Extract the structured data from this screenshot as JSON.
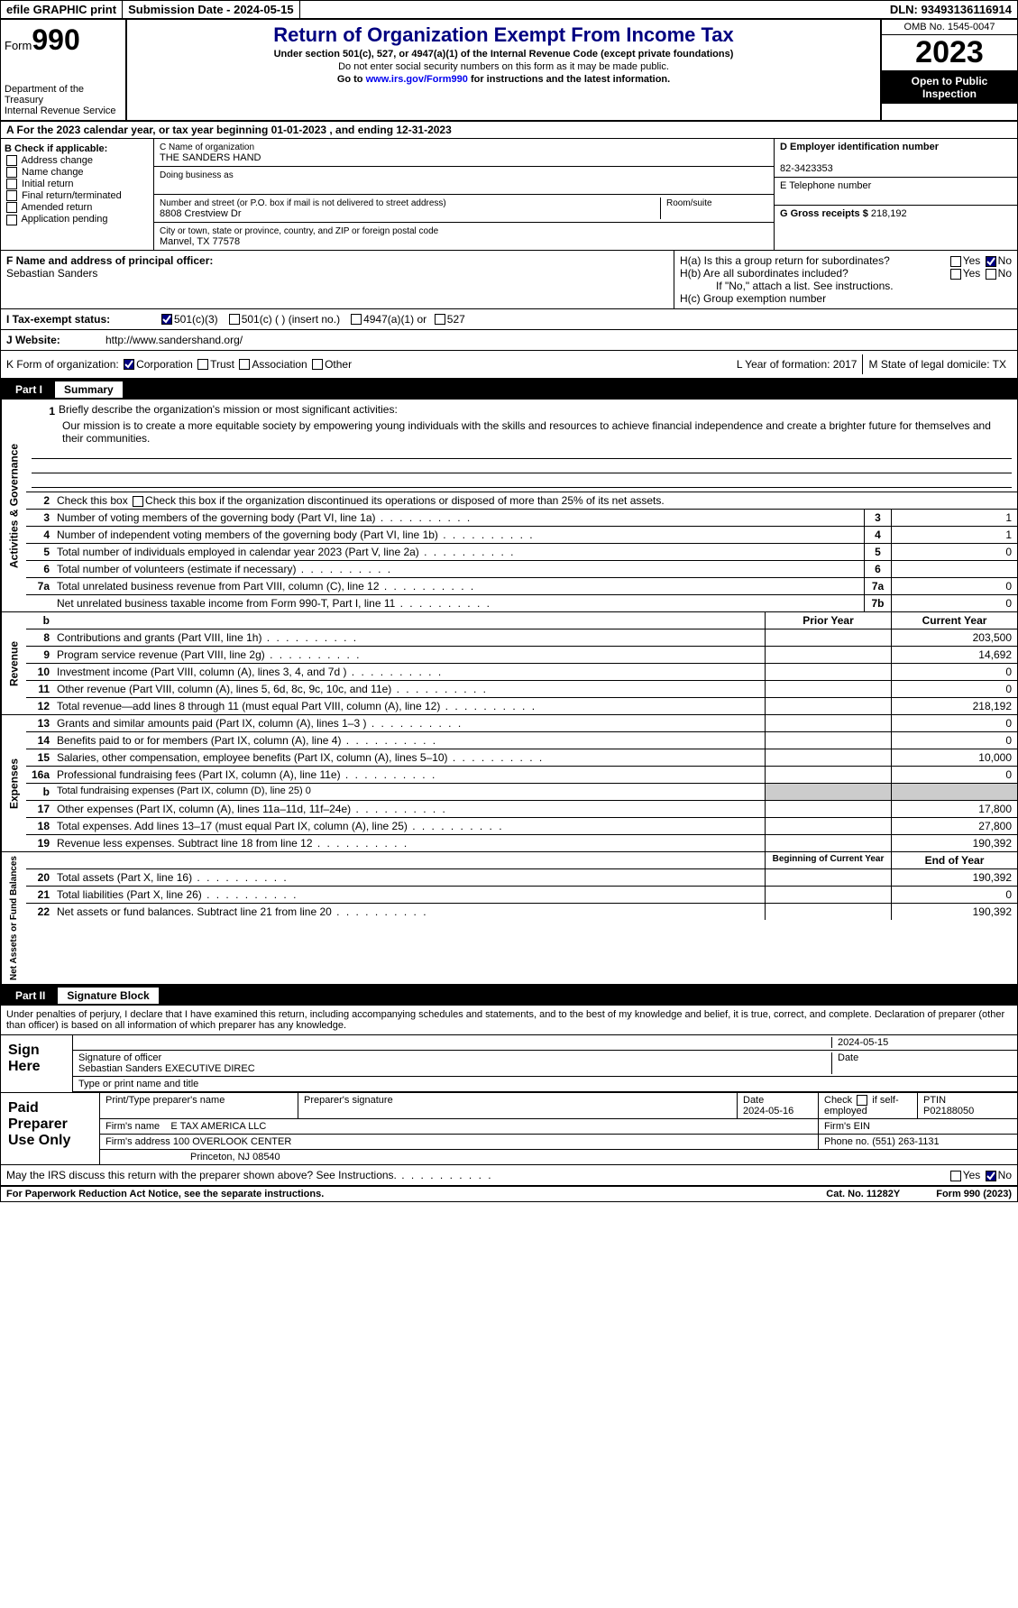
{
  "topbar": {
    "efile": "efile GRAPHIC print",
    "submission": "Submission Date - 2024-05-15",
    "dln": "DLN: 93493136116914"
  },
  "header": {
    "form_label": "Form",
    "form_no": "990",
    "dept": "Department of the Treasury\nInternal Revenue Service",
    "title": "Return of Organization Exempt From Income Tax",
    "subtitle": "Under section 501(c), 527, or 4947(a)(1) of the Internal Revenue Code (except private foundations)",
    "note1": "Do not enter social security numbers on this form as it may be made public.",
    "note2_pre": "Go to ",
    "note2_link": "www.irs.gov/Form990",
    "note2_post": " for instructions and the latest information.",
    "omb": "OMB No. 1545-0047",
    "year": "2023",
    "inspect": "Open to Public Inspection"
  },
  "rowA": "A  For the 2023 calendar year, or tax year beginning 01-01-2023   , and ending 12-31-2023",
  "secB": {
    "b_label": "B Check if applicable:",
    "opts": [
      "Address change",
      "Name change",
      "Initial return",
      "Final return/terminated",
      "Amended return",
      "Application pending"
    ],
    "c_name_lbl": "C Name of organization",
    "c_name": "THE SANDERS HAND",
    "dba_lbl": "Doing business as",
    "addr_lbl": "Number and street (or P.O. box if mail is not delivered to street address)",
    "addr": "8808 Crestview Dr",
    "room_lbl": "Room/suite",
    "city_lbl": "City or town, state or province, country, and ZIP or foreign postal code",
    "city": "Manvel, TX  77578",
    "d_lbl": "D Employer identification number",
    "d_val": "82-3423353",
    "e_lbl": "E Telephone number",
    "g_lbl": "G Gross receipts $",
    "g_val": "218,192"
  },
  "secFH": {
    "f_lbl": "F  Name and address of principal officer:",
    "f_val": "Sebastian Sanders",
    "ha": "H(a)  Is this a group return for subordinates?",
    "hb": "H(b)  Are all subordinates included?",
    "hb_note": "If \"No,\" attach a list. See instructions.",
    "hc": "H(c)  Group exemption number"
  },
  "rowI": {
    "lbl": "I    Tax-exempt status:",
    "o1": "501(c)(3)",
    "o2": "501(c) (  ) (insert no.)",
    "o3": "4947(a)(1) or",
    "o4": "527"
  },
  "rowJ": {
    "lbl": "J    Website:",
    "val": "http://www.sandershand.org/"
  },
  "rowK": {
    "lbl": "K Form of organization:",
    "o1": "Corporation",
    "o2": "Trust",
    "o3": "Association",
    "o4": "Other",
    "l": "L Year of formation: 2017",
    "m": "M State of legal domicile: TX"
  },
  "part1": {
    "num": "Part I",
    "title": "Summary"
  },
  "mission": {
    "n": "1",
    "lbl": "Briefly describe the organization's mission or most significant activities:",
    "text": "Our mission is to create a more equitable society by empowering young individuals with the skills and resources to achieve financial independence and create a brighter future for themselves and their communities."
  },
  "gov": {
    "tab": "Activities & Governance",
    "l2": "Check this box  if the organization discontinued its operations or disposed of more than 25% of its net assets.",
    "lines": [
      {
        "n": "3",
        "t": "Number of voting members of the governing body (Part VI, line 1a)",
        "c": "3",
        "v": "1"
      },
      {
        "n": "4",
        "t": "Number of independent voting members of the governing body (Part VI, line 1b)",
        "c": "4",
        "v": "1"
      },
      {
        "n": "5",
        "t": "Total number of individuals employed in calendar year 2023 (Part V, line 2a)",
        "c": "5",
        "v": "0"
      },
      {
        "n": "6",
        "t": "Total number of volunteers (estimate if necessary)",
        "c": "6",
        "v": ""
      },
      {
        "n": "7a",
        "t": "Total unrelated business revenue from Part VIII, column (C), line 12",
        "c": "7a",
        "v": "0"
      },
      {
        "n": "",
        "t": "Net unrelated business taxable income from Form 990-T, Part I, line 11",
        "c": "7b",
        "v": "0"
      }
    ]
  },
  "rev": {
    "tab": "Revenue",
    "hdr1": "Prior Year",
    "hdr2": "Current Year",
    "lines": [
      {
        "n": "8",
        "t": "Contributions and grants (Part VIII, line 1h)",
        "p": "",
        "c": "203,500"
      },
      {
        "n": "9",
        "t": "Program service revenue (Part VIII, line 2g)",
        "p": "",
        "c": "14,692"
      },
      {
        "n": "10",
        "t": "Investment income (Part VIII, column (A), lines 3, 4, and 7d )",
        "p": "",
        "c": "0"
      },
      {
        "n": "11",
        "t": "Other revenue (Part VIII, column (A), lines 5, 6d, 8c, 9c, 10c, and 11e)",
        "p": "",
        "c": "0"
      },
      {
        "n": "12",
        "t": "Total revenue—add lines 8 through 11 (must equal Part VIII, column (A), line 12)",
        "p": "",
        "c": "218,192"
      }
    ]
  },
  "exp": {
    "tab": "Expenses",
    "lines": [
      {
        "n": "13",
        "t": "Grants and similar amounts paid (Part IX, column (A), lines 1–3 )",
        "p": "",
        "c": "0"
      },
      {
        "n": "14",
        "t": "Benefits paid to or for members (Part IX, column (A), line 4)",
        "p": "",
        "c": "0"
      },
      {
        "n": "15",
        "t": "Salaries, other compensation, employee benefits (Part IX, column (A), lines 5–10)",
        "p": "",
        "c": "10,000"
      },
      {
        "n": "16a",
        "t": "Professional fundraising fees (Part IX, column (A), line 11e)",
        "p": "",
        "c": "0"
      },
      {
        "n": "b",
        "t": "Total fundraising expenses (Part IX, column (D), line 25) 0",
        "shade": true
      },
      {
        "n": "17",
        "t": "Other expenses (Part IX, column (A), lines 11a–11d, 11f–24e)",
        "p": "",
        "c": "17,800"
      },
      {
        "n": "18",
        "t": "Total expenses. Add lines 13–17 (must equal Part IX, column (A), line 25)",
        "p": "",
        "c": "27,800"
      },
      {
        "n": "19",
        "t": "Revenue less expenses. Subtract line 18 from line 12",
        "p": "",
        "c": "190,392"
      }
    ]
  },
  "net": {
    "tab": "Net Assets or Fund Balances",
    "hdr1": "Beginning of Current Year",
    "hdr2": "End of Year",
    "lines": [
      {
        "n": "20",
        "t": "Total assets (Part X, line 16)",
        "p": "",
        "c": "190,392"
      },
      {
        "n": "21",
        "t": "Total liabilities (Part X, line 26)",
        "p": "",
        "c": "0"
      },
      {
        "n": "22",
        "t": "Net assets or fund balances. Subtract line 21 from line 20",
        "p": "",
        "c": "190,392"
      }
    ]
  },
  "part2": {
    "num": "Part II",
    "title": "Signature Block"
  },
  "sig_decl": "Under penalties of perjury, I declare that I have examined this return, including accompanying schedules and statements, and to the best of my knowledge and belief, it is true, correct, and complete. Declaration of preparer (other than officer) is based on all information of which preparer has any knowledge.",
  "sign": {
    "lbl": "Sign Here",
    "date": "2024-05-15",
    "sig_lbl": "Signature of officer",
    "name": "Sebastian Sanders  EXECUTIVE DIREC",
    "name_lbl": "Type or print name and title",
    "date_lbl": "Date"
  },
  "prep": {
    "lbl": "Paid Preparer Use Only",
    "h1": "Print/Type preparer's name",
    "h2": "Preparer's signature",
    "h3": "Date",
    "h3v": "2024-05-16",
    "h4": "Check  if self-employed",
    "h5": "PTIN",
    "h5v": "P02188050",
    "firm_lbl": "Firm's name",
    "firm": "E TAX AMERICA LLC",
    "ein_lbl": "Firm's EIN",
    "addr_lbl": "Firm's address",
    "addr1": "100 OVERLOOK CENTER",
    "addr2": "Princeton, NJ  08540",
    "phone_lbl": "Phone no.",
    "phone": "(551) 263-1131"
  },
  "discuss": "May the IRS discuss this return with the preparer shown above? See Instructions.",
  "foot": {
    "l": "For Paperwork Reduction Act Notice, see the separate instructions.",
    "c": "Cat. No. 11282Y",
    "r": "Form 990 (2023)"
  }
}
